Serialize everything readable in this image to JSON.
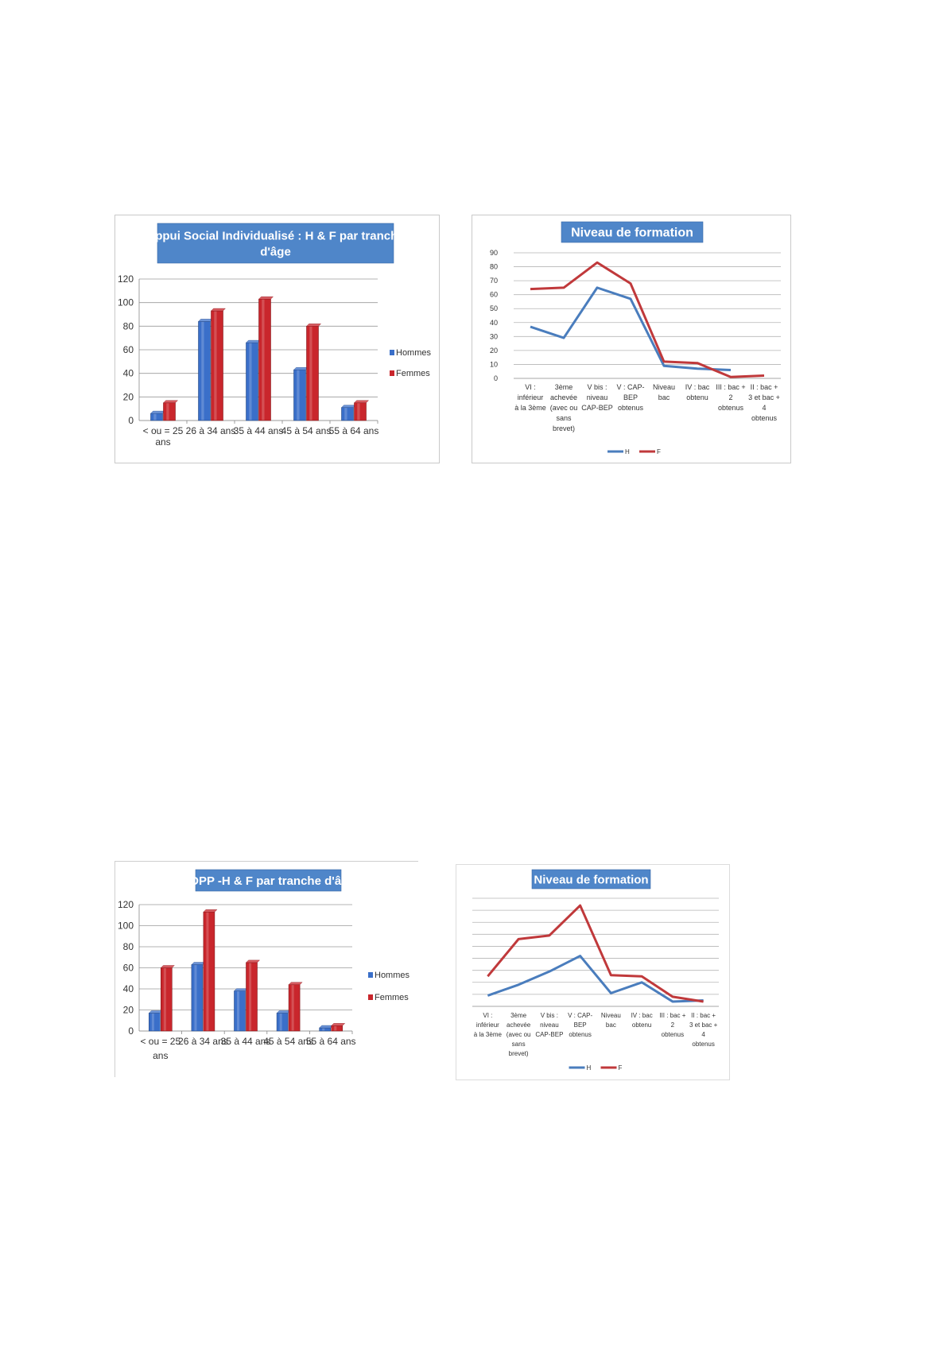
{
  "charts": {
    "bar1": {
      "type": "bar",
      "title": [
        "Appui Social Individualisé : H & F par tranche",
        "d'âge"
      ],
      "categories": [
        [
          "< ou = 25",
          "ans"
        ],
        [
          "26 à 34 ans"
        ],
        [
          "35 à 44 ans"
        ],
        [
          "45 à 54 ans"
        ],
        [
          "55 à 64 ans"
        ]
      ],
      "series": [
        {
          "name": "Hommes",
          "values": [
            6,
            84,
            66,
            43,
            11
          ],
          "color": "#3a6fc9"
        },
        {
          "name": "Femmes",
          "values": [
            15,
            93,
            103,
            80,
            15
          ],
          "color": "#c9262c"
        }
      ],
      "ylim": [
        0,
        120
      ],
      "yticks": [
        0,
        20,
        40,
        60,
        80,
        100,
        120
      ],
      "grid": true,
      "legend": "right",
      "title_bg": "#4f86c9"
    },
    "line1": {
      "type": "line",
      "title": [
        "Niveau de formation"
      ],
      "categories": [
        [
          "VI :",
          "inférieur",
          "à la 3ème"
        ],
        [
          "3ème",
          "achevée",
          "(avec ou",
          "sans",
          "brevet)"
        ],
        [
          "V bis :",
          "niveau",
          "CAP-BEP"
        ],
        [
          "V : CAP-",
          "BEP",
          "obtenus"
        ],
        [
          "Niveau",
          "bac"
        ],
        [
          "IV : bac",
          "obtenu"
        ],
        [
          "III : bac +",
          "2",
          "obtenus"
        ],
        [
          "II : bac +",
          "3 et bac +",
          "4",
          "obtenus"
        ]
      ],
      "series": [
        {
          "name": "H",
          "values": [
            37,
            29,
            65,
            57,
            9,
            7,
            6,
            null
          ],
          "color": "#4a7dbd"
        },
        {
          "name": "F",
          "values": [
            64,
            65,
            83,
            68,
            12,
            11,
            1,
            2
          ],
          "color": "#c0393b"
        }
      ],
      "ylim": [
        0,
        90
      ],
      "yticks": [
        0,
        10,
        20,
        30,
        40,
        50,
        60,
        70,
        80,
        90
      ],
      "grid": true,
      "legend": "bottom",
      "title_bg": "#4f86c9"
    },
    "bar2": {
      "type": "bar",
      "title": [
        "ADPP -H & F par tranche d'âge"
      ],
      "categories": [
        [
          "< ou = 25",
          "ans"
        ],
        [
          "26 à 34 ans"
        ],
        [
          "35 à 44 ans"
        ],
        [
          "45 à 54 ans"
        ],
        [
          "55 à 64 ans"
        ]
      ],
      "series": [
        {
          "name": "Hommes",
          "values": [
            17,
            63,
            38,
            17,
            3
          ],
          "color": "#3a6fc9"
        },
        {
          "name": "Femmes",
          "values": [
            60,
            113,
            65,
            44,
            5
          ],
          "color": "#c9262c"
        }
      ],
      "ylim": [
        0,
        120
      ],
      "yticks": [
        0,
        20,
        40,
        60,
        80,
        100,
        120
      ],
      "grid": true,
      "legend": "right",
      "title_bg": "#4f86c9"
    },
    "line2": {
      "type": "line",
      "title": [
        "Niveau de formation"
      ],
      "categories": [
        [
          "VI :",
          "inférieur",
          "à la 3ème"
        ],
        [
          "3ème",
          "achevée",
          "(avec ou",
          "sans",
          "brevet)"
        ],
        [
          "V bis :",
          "niveau",
          "CAP-BEP"
        ],
        [
          "V : CAP-",
          "BEP",
          "obtenus"
        ],
        [
          "Niveau",
          "bac"
        ],
        [
          "IV : bac",
          "obtenu"
        ],
        [
          "III : bac +",
          "2",
          "obtenus"
        ],
        [
          "II : bac +",
          "3 et bac +",
          "4",
          "obtenus"
        ]
      ],
      "series": [
        {
          "name": "H",
          "values": [
            9,
            18,
            29,
            42,
            11,
            20,
            4,
            5
          ],
          "color": "#4a7dbd"
        },
        {
          "name": "F",
          "values": [
            25,
            56,
            59,
            84,
            26,
            25,
            8,
            4
          ],
          "color": "#c0393b"
        }
      ],
      "ylim": [
        0,
        90
      ],
      "yticks": [
        0,
        10,
        20,
        30,
        40,
        50,
        60,
        70,
        80,
        90
      ],
      "grid": true,
      "legend": "bottom",
      "title_bg": "#4f86c9"
    }
  }
}
